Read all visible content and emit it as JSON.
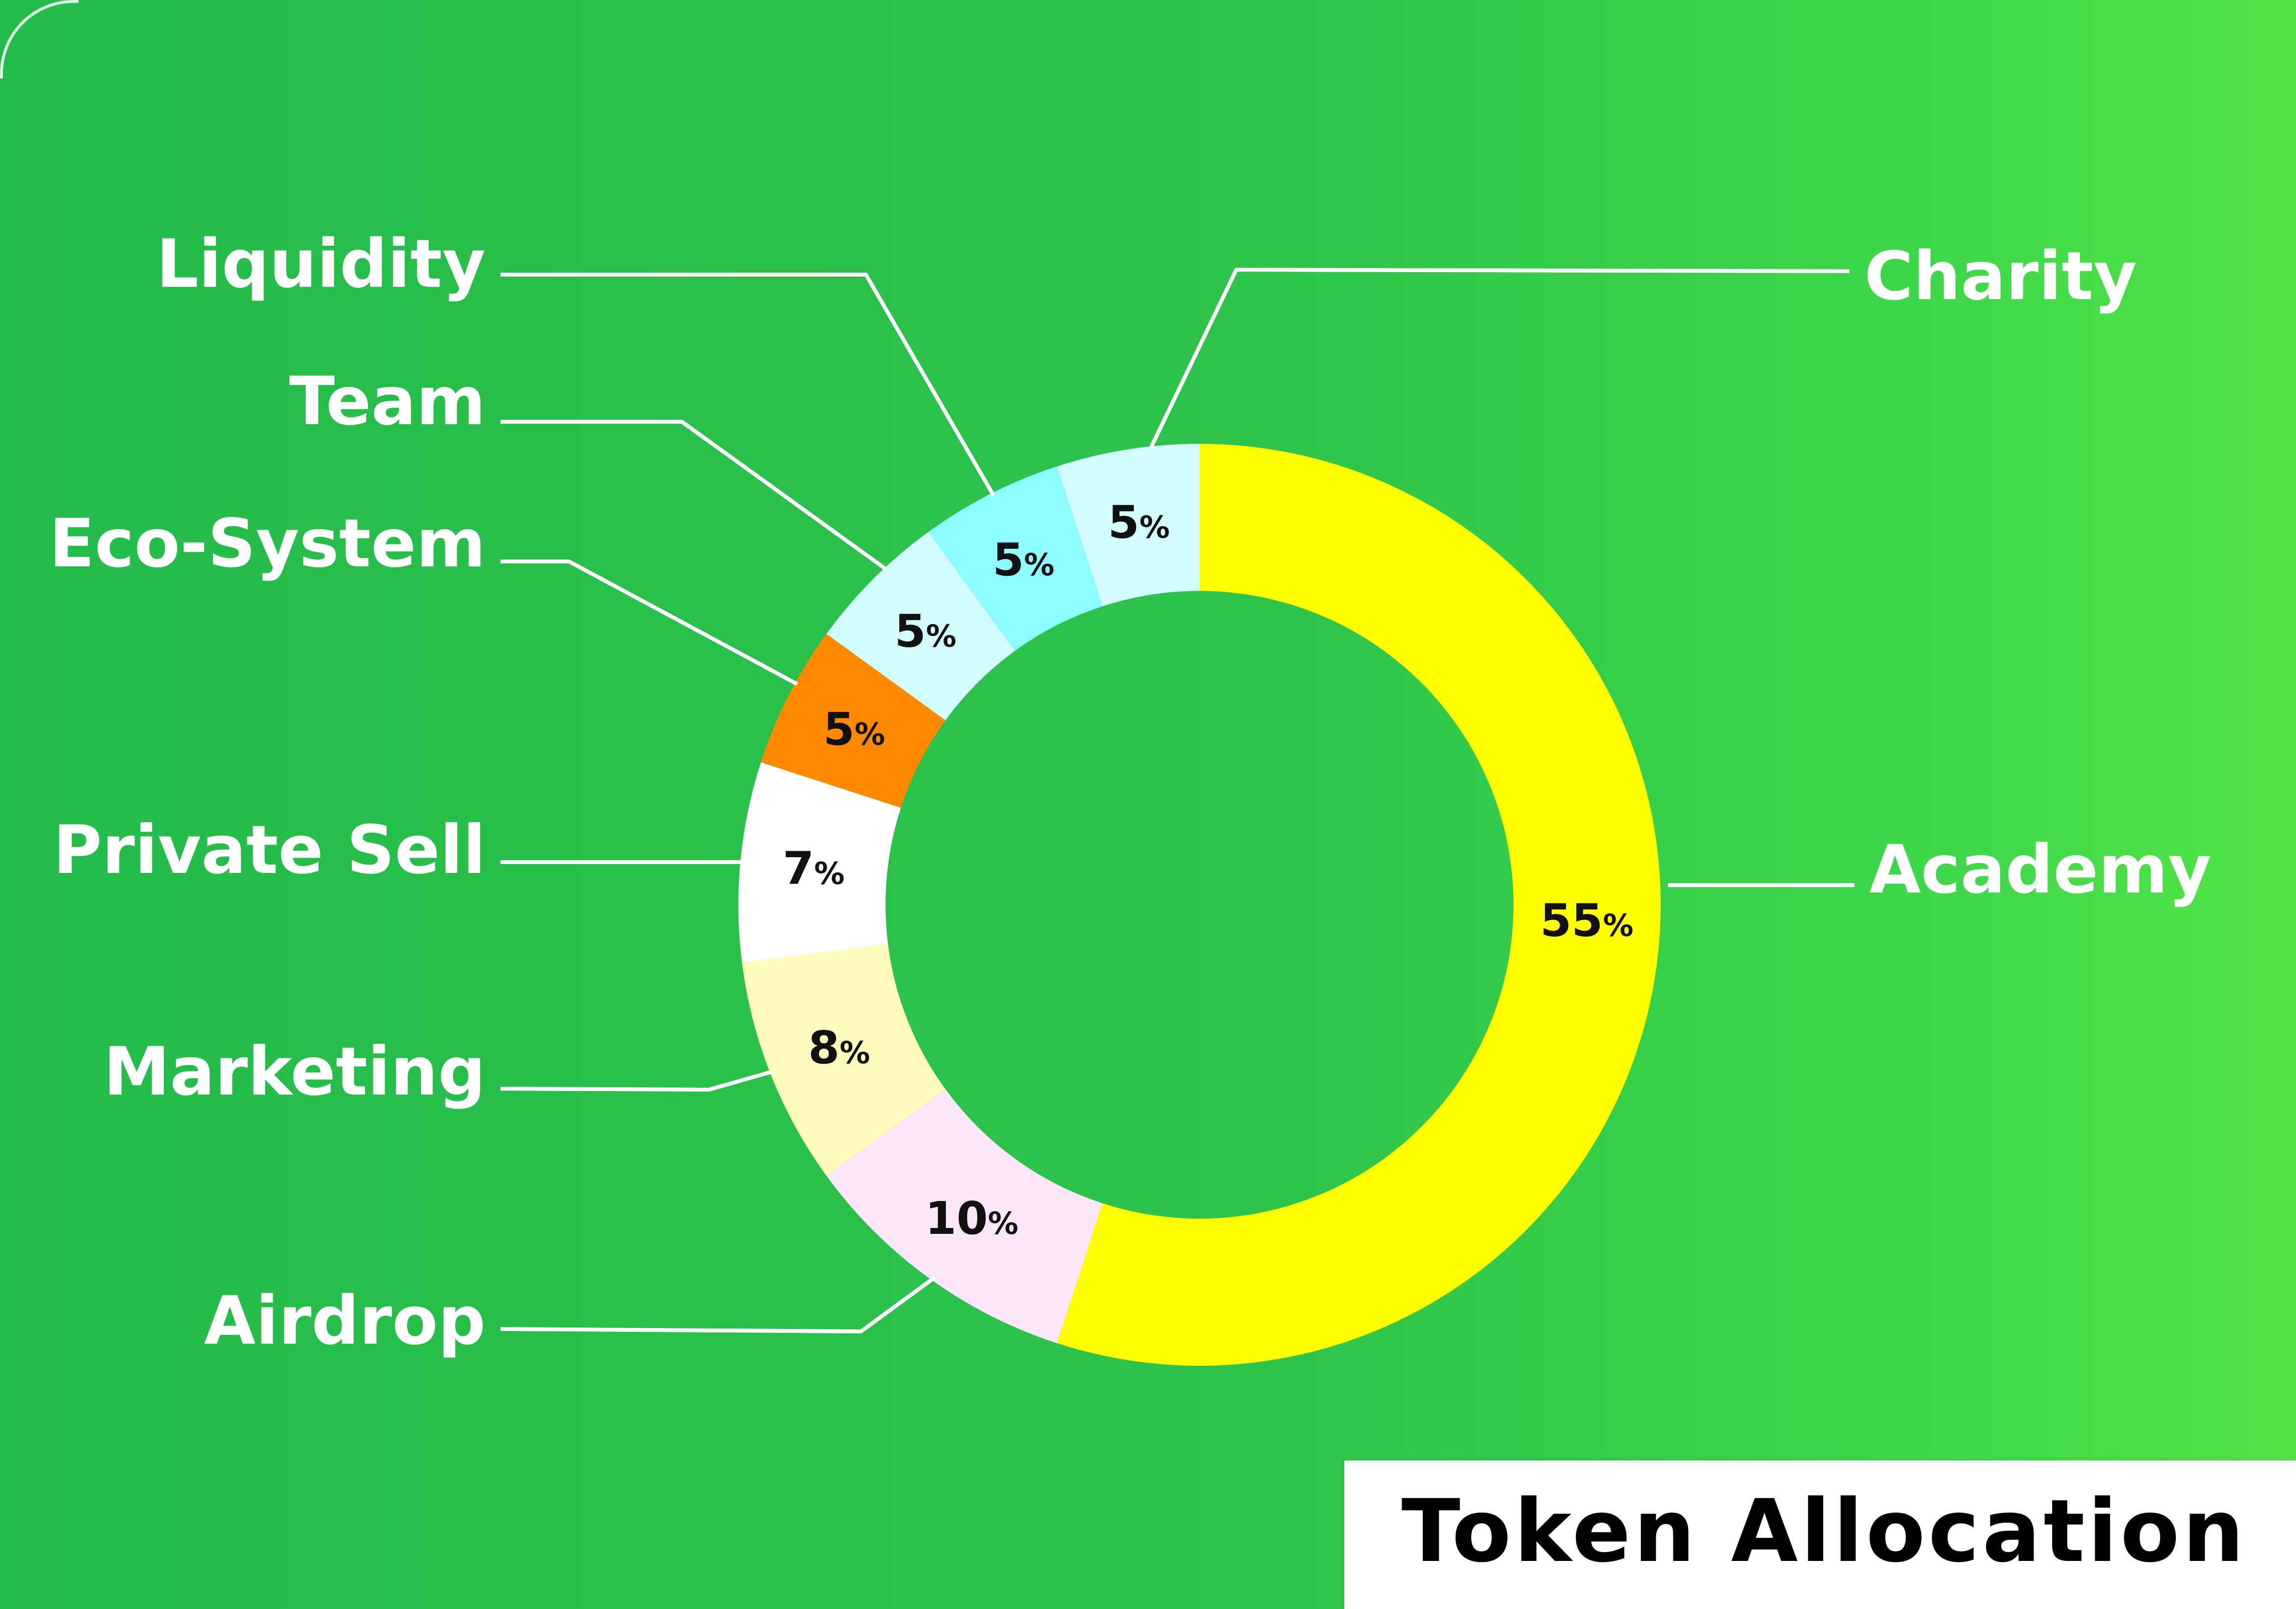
{
  "chart_data": {
    "type": "pie",
    "donut": true,
    "title": "Token Allocation",
    "categories": [
      "Academy",
      "Airdrop",
      "Marketing",
      "Private Sell",
      "Eco-System",
      "Team",
      "Liquidity",
      "Charity"
    ],
    "values": [
      55,
      10,
      8,
      7,
      5,
      5,
      5,
      5
    ],
    "value_labels": [
      "55%",
      "10%",
      "8%",
      "7%",
      "5%",
      "5%",
      "5%",
      "5%"
    ],
    "colors": [
      "#ffff00",
      "#fce6fa",
      "#fffcbe",
      "#ffffff",
      "#ff8a00",
      "#d2fcff",
      "#8cfcff",
      "#d2fcff"
    ],
    "start": "12 o'clock",
    "direction": "clockwise"
  },
  "background_color": "#2ec34b",
  "label_color": "#ffffff",
  "leader_line_color": "#ffffff"
}
